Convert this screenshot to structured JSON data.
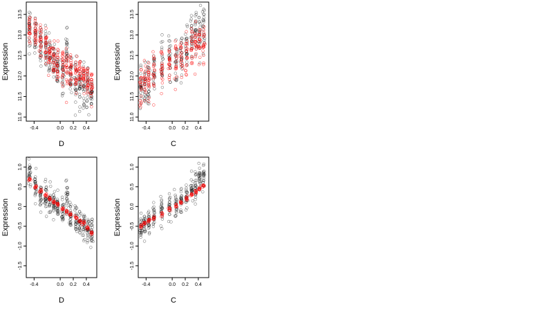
{
  "colors": {
    "background": "#ffffff",
    "axis": "#000000",
    "observed_points": "#000000",
    "fitted_points": "#ff0000"
  },
  "chart_data": [
    {
      "type": "scatter",
      "panel": "top-left",
      "xlabel": "D",
      "ylabel": "Expression",
      "xlim": [
        -0.52,
        0.56
      ],
      "ylim": [
        10.9,
        13.8
      ],
      "xticks": [
        -0.4,
        0.0,
        0.2,
        0.4
      ],
      "xtick_labels": [
        "-0.4",
        "0.0",
        "0.2",
        "0.4"
      ],
      "yticks": [
        11.0,
        11.5,
        12.0,
        12.5,
        13.0,
        13.5
      ],
      "ytick_labels": [
        "11.0",
        "11.5",
        "12.0",
        "12.5",
        "13.0",
        "13.5"
      ],
      "point_style": "open-circle",
      "series": [
        {
          "color": "#000000",
          "x_clusters": [
            -0.47,
            -0.38,
            -0.3,
            -0.22,
            -0.16,
            -0.1,
            -0.04,
            0.04,
            0.1,
            0.16,
            0.24,
            0.3,
            0.36,
            0.42,
            0.48
          ],
          "y_means": [
            13.2,
            12.9,
            12.75,
            12.6,
            12.5,
            12.4,
            12.2,
            12.1,
            12.6,
            12.0,
            11.9,
            11.8,
            11.75,
            11.7,
            11.6
          ],
          "y_spread": 0.42,
          "points_per_cluster": 24
        },
        {
          "color": "#ff0000",
          "x_clusters": [
            -0.47,
            -0.38,
            -0.3,
            -0.22,
            -0.16,
            -0.1,
            -0.04,
            0.04,
            0.1,
            0.16,
            0.24,
            0.3,
            0.36,
            0.42,
            0.48
          ],
          "y_means": [
            13.15,
            12.95,
            12.8,
            12.65,
            12.55,
            12.45,
            12.35,
            12.25,
            12.2,
            12.15,
            12.05,
            12.0,
            11.95,
            11.9,
            11.85
          ],
          "y_spread": 0.35,
          "points_per_cluster": 20
        }
      ]
    },
    {
      "type": "scatter",
      "panel": "top-right",
      "xlabel": "C",
      "ylabel": "Expression",
      "xlim": [
        -0.52,
        0.56
      ],
      "ylim": [
        10.9,
        13.8
      ],
      "xticks": [
        -0.4,
        0.0,
        0.2,
        0.4
      ],
      "xtick_labels": [
        "-0.4",
        "0.0",
        "0.2",
        "0.4"
      ],
      "yticks": [
        11.0,
        11.5,
        12.0,
        12.5,
        13.0,
        13.5
      ],
      "ytick_labels": [
        "11.0",
        "11.5",
        "12.0",
        "12.5",
        "13.0",
        "13.5"
      ],
      "point_style": "open-circle",
      "series": [
        {
          "color": "#000000",
          "x_clusters": [
            -0.48,
            -0.42,
            -0.36,
            -0.28,
            -0.16,
            -0.04,
            0.06,
            0.14,
            0.22,
            0.3,
            0.36,
            0.42,
            0.48
          ],
          "y_means": [
            11.7,
            11.8,
            11.9,
            12.1,
            12.3,
            12.4,
            12.35,
            12.5,
            12.6,
            12.9,
            13.0,
            13.1,
            13.2
          ],
          "y_spread": 0.5,
          "points_per_cluster": 22
        },
        {
          "color": "#ff0000",
          "x_clusters": [
            -0.48,
            -0.42,
            -0.36,
            -0.28,
            -0.16,
            -0.04,
            0.06,
            0.14,
            0.22,
            0.3,
            0.36,
            0.42,
            0.48
          ],
          "y_means": [
            11.75,
            11.85,
            11.95,
            12.05,
            12.2,
            12.3,
            12.35,
            12.45,
            12.55,
            12.7,
            12.75,
            12.8,
            12.85
          ],
          "y_spread": 0.4,
          "points_per_cluster": 18
        }
      ]
    },
    {
      "type": "scatter",
      "panel": "bottom-left",
      "xlabel": "D",
      "ylabel": "Expression",
      "xlim": [
        -0.52,
        0.56
      ],
      "ylim": [
        -1.8,
        1.25
      ],
      "xticks": [
        -0.4,
        0.0,
        0.2,
        0.4
      ],
      "xtick_labels": [
        "-0.4",
        "0.0",
        "0.2",
        "0.4"
      ],
      "yticks": [
        -1.5,
        -1.0,
        -0.5,
        0.0,
        0.5,
        1.0
      ],
      "ytick_labels": [
        "-1.5",
        "-1.0",
        "-0.5",
        "0.0",
        "0.5",
        "1.0"
      ],
      "point_style": "open-circle",
      "series": [
        {
          "color": "#000000",
          "x_clusters": [
            -0.47,
            -0.38,
            -0.3,
            -0.22,
            -0.16,
            -0.1,
            -0.04,
            0.04,
            0.1,
            0.16,
            0.24,
            0.3,
            0.36,
            0.42,
            0.48
          ],
          "y_means": [
            0.8,
            0.5,
            0.3,
            0.2,
            0.1,
            0.05,
            -0.05,
            -0.1,
            0.2,
            -0.2,
            -0.3,
            -0.4,
            -0.45,
            -0.6,
            -0.7
          ],
          "y_spread": 0.3,
          "points_per_cluster": 24
        },
        {
          "color": "#ff0000",
          "x_clusters": [
            -0.47,
            -0.38,
            -0.3,
            -0.22,
            -0.16,
            -0.1,
            -0.04,
            0.04,
            0.1,
            0.16,
            0.24,
            0.3,
            0.36,
            0.42,
            0.48
          ],
          "y_means": [
            0.68,
            0.5,
            0.38,
            0.28,
            0.2,
            0.12,
            0.04,
            -0.05,
            -0.12,
            -0.2,
            -0.28,
            -0.35,
            -0.42,
            -0.55,
            -0.65
          ],
          "y_spread": 0.04,
          "points_per_cluster": 8
        }
      ]
    },
    {
      "type": "scatter",
      "panel": "bottom-right",
      "xlabel": "C",
      "ylabel": "Expression",
      "xlim": [
        -0.52,
        0.56
      ],
      "ylim": [
        -1.8,
        1.25
      ],
      "xticks": [
        -0.4,
        0.0,
        0.2,
        0.4
      ],
      "xtick_labels": [
        "-0.4",
        "0.0",
        "0.2",
        "0.4"
      ],
      "yticks": [
        -1.5,
        -1.0,
        -0.5,
        0.0,
        0.5,
        1.0
      ],
      "ytick_labels": [
        "-1.5",
        "-1.0",
        "-0.5",
        "0.0",
        "0.5",
        "1.0"
      ],
      "point_style": "open-circle",
      "series": [
        {
          "color": "#000000",
          "x_clusters": [
            -0.48,
            -0.42,
            -0.36,
            -0.28,
            -0.16,
            -0.04,
            0.06,
            0.14,
            0.22,
            0.3,
            0.36,
            0.42,
            0.48
          ],
          "y_means": [
            -0.55,
            -0.45,
            -0.35,
            -0.2,
            -0.1,
            0.0,
            0.05,
            0.15,
            0.3,
            0.45,
            0.55,
            0.7,
            0.8
          ],
          "y_spread": 0.3,
          "points_per_cluster": 22
        },
        {
          "color": "#ff0000",
          "x_clusters": [
            -0.48,
            -0.42,
            -0.36,
            -0.28,
            -0.16,
            -0.04,
            0.06,
            0.14,
            0.22,
            0.3,
            0.36,
            0.42,
            0.48
          ],
          "y_means": [
            -0.5,
            -0.42,
            -0.35,
            -0.28,
            -0.18,
            -0.08,
            0.02,
            0.1,
            0.2,
            0.3,
            0.38,
            0.45,
            0.52
          ],
          "y_spread": 0.04,
          "points_per_cluster": 8
        }
      ]
    }
  ]
}
